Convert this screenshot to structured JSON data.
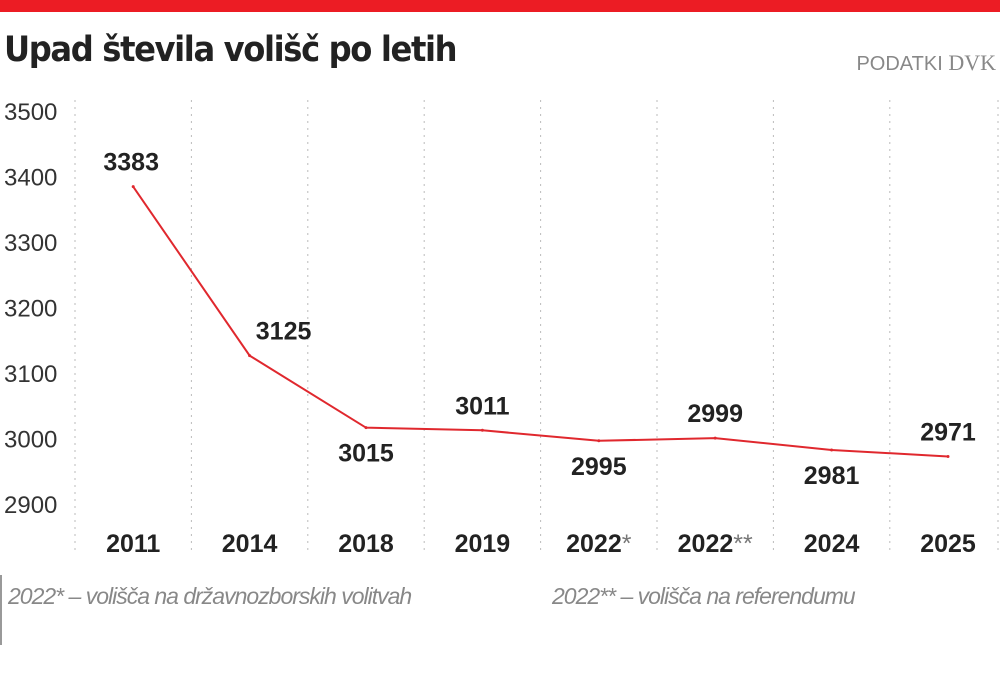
{
  "header": {
    "title": "Upad števila volišč po letih",
    "source_prefix": "PODATKI",
    "source_name": "DVK"
  },
  "colors": {
    "accent": "#ec1c24",
    "line": "#e0282e",
    "text": "#222222",
    "muted": "#888888"
  },
  "chart_data": {
    "type": "line",
    "title": "Upad števila volišč po letih",
    "categories": [
      "2011",
      "2014",
      "2018",
      "2019",
      "2022*",
      "2022**",
      "2024",
      "2025"
    ],
    "values": [
      3383,
      3125,
      3015,
      3011,
      2995,
      2999,
      2981,
      2971
    ],
    "label_positions": [
      "above",
      "above",
      "below",
      "above",
      "below",
      "above",
      "below",
      "above"
    ],
    "yticks": [
      3500,
      3400,
      3300,
      3200,
      3100,
      3000,
      2900
    ],
    "ylim": [
      2900,
      3500
    ],
    "grid": "vertical dotted",
    "xlabel": "",
    "ylabel": ""
  },
  "footnotes": [
    "2022* – volišča na državnozborskih volitvah",
    "2022** – volišča na referendumu"
  ]
}
